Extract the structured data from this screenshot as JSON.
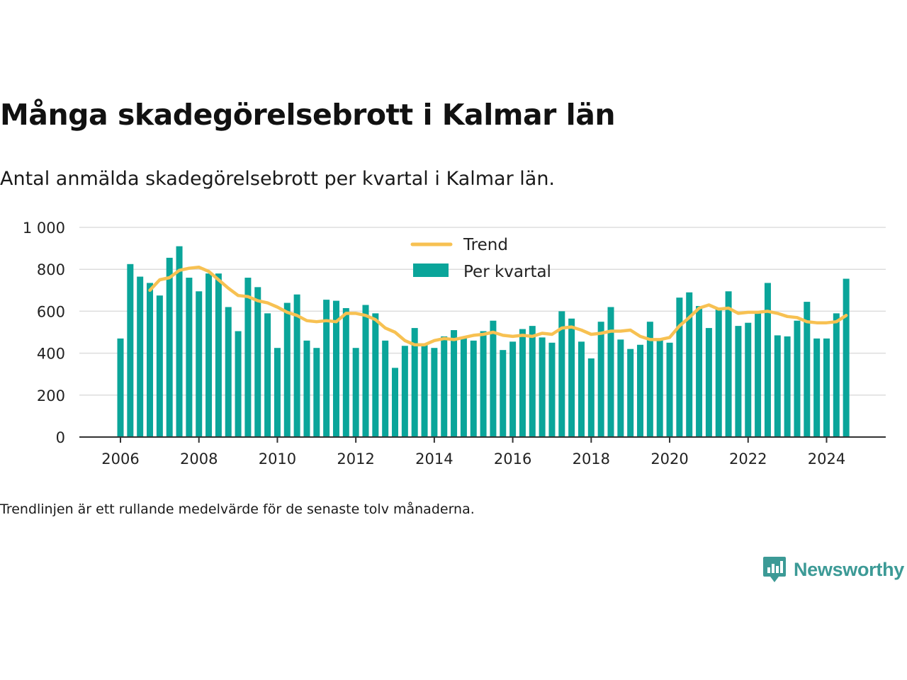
{
  "header": {
    "title": "Många skadegörelsebrott i Kalmar län",
    "subtitle": "Antal anmälda skadegörelsebrott per kvartal i Kalmar län."
  },
  "footer": {
    "note": "Trendlinjen är ett rullande medelvärde för de senaste tolv månaderna.",
    "brand": "Newsworthy"
  },
  "colors": {
    "bars": "#0aa59a",
    "trend": "#f7c152",
    "grid": "#dddddd",
    "axis": "#333333",
    "brand": "#3c9a96"
  },
  "chart_data": {
    "type": "bar",
    "title": "Många skadegörelsebrott i Kalmar län",
    "subtitle": "Antal anmälda skadegörelsebrott per kvartal i Kalmar län.",
    "xlabel": "",
    "ylabel": "",
    "ylim": [
      0,
      1000
    ],
    "yticks": [
      0,
      200,
      400,
      600,
      800,
      1000
    ],
    "ytick_labels": [
      "0",
      "200",
      "400",
      "600",
      "800",
      "1 000"
    ],
    "xticks": [
      2006,
      2008,
      2010,
      2012,
      2014,
      2016,
      2018,
      2020,
      2022,
      2024
    ],
    "xtick_labels": [
      "2006",
      "2008",
      "2010",
      "2012",
      "2014",
      "2016",
      "2018",
      "2020",
      "2022",
      "2024"
    ],
    "grid": true,
    "legend_position": "top-center",
    "categories": [
      "2006 Q1",
      "2006 Q2",
      "2006 Q3",
      "2006 Q4",
      "2007 Q1",
      "2007 Q2",
      "2007 Q3",
      "2007 Q4",
      "2008 Q1",
      "2008 Q2",
      "2008 Q3",
      "2008 Q4",
      "2009 Q1",
      "2009 Q2",
      "2009 Q3",
      "2009 Q4",
      "2010 Q1",
      "2010 Q2",
      "2010 Q3",
      "2010 Q4",
      "2011 Q1",
      "2011 Q2",
      "2011 Q3",
      "2011 Q4",
      "2012 Q1",
      "2012 Q2",
      "2012 Q3",
      "2012 Q4",
      "2013 Q1",
      "2013 Q2",
      "2013 Q3",
      "2013 Q4",
      "2014 Q1",
      "2014 Q2",
      "2014 Q3",
      "2014 Q4",
      "2015 Q1",
      "2015 Q2",
      "2015 Q3",
      "2015 Q4",
      "2016 Q1",
      "2016 Q2",
      "2016 Q3",
      "2016 Q4",
      "2017 Q1",
      "2017 Q2",
      "2017 Q3",
      "2017 Q4",
      "2018 Q1",
      "2018 Q2",
      "2018 Q3",
      "2018 Q4",
      "2019 Q1",
      "2019 Q2",
      "2019 Q3",
      "2019 Q4",
      "2020 Q1",
      "2020 Q2",
      "2020 Q3",
      "2020 Q4",
      "2021 Q1",
      "2021 Q2",
      "2021 Q3",
      "2021 Q4",
      "2022 Q1",
      "2022 Q2",
      "2022 Q3",
      "2022 Q4",
      "2023 Q1",
      "2023 Q2",
      "2023 Q3",
      "2023 Q4",
      "2024 Q1",
      "2024 Q2",
      "2024 Q3"
    ],
    "series": [
      {
        "name": "Per kvartal",
        "type": "bar",
        "values": [
          470,
          825,
          765,
          735,
          675,
          855,
          910,
          760,
          695,
          780,
          780,
          620,
          505,
          760,
          715,
          590,
          425,
          640,
          680,
          460,
          425,
          655,
          650,
          615,
          425,
          630,
          590,
          460,
          330,
          435,
          520,
          445,
          425,
          480,
          510,
          475,
          460,
          505,
          555,
          415,
          455,
          515,
          530,
          475,
          450,
          600,
          565,
          455,
          375,
          550,
          620,
          465,
          420,
          440,
          550,
          465,
          450,
          665,
          690,
          625,
          520,
          615,
          695,
          530,
          545,
          590,
          735,
          485,
          480,
          555,
          645,
          470,
          470,
          590,
          755
        ]
      },
      {
        "name": "Trend",
        "type": "line",
        "values": [
          null,
          null,
          null,
          700,
          750,
          760,
          795,
          805,
          810,
          790,
          750,
          710,
          675,
          670,
          650,
          640,
          620,
          595,
          580,
          555,
          550,
          555,
          550,
          590,
          590,
          580,
          560,
          520,
          500,
          460,
          440,
          440,
          460,
          470,
          465,
          475,
          485,
          490,
          500,
          485,
          480,
          485,
          480,
          495,
          490,
          520,
          525,
          510,
          490,
          495,
          505,
          505,
          510,
          480,
          465,
          465,
          475,
          530,
          570,
          615,
          630,
          610,
          615,
          590,
          595,
          595,
          600,
          590,
          575,
          570,
          550,
          545,
          545,
          550,
          580
        ]
      }
    ]
  }
}
